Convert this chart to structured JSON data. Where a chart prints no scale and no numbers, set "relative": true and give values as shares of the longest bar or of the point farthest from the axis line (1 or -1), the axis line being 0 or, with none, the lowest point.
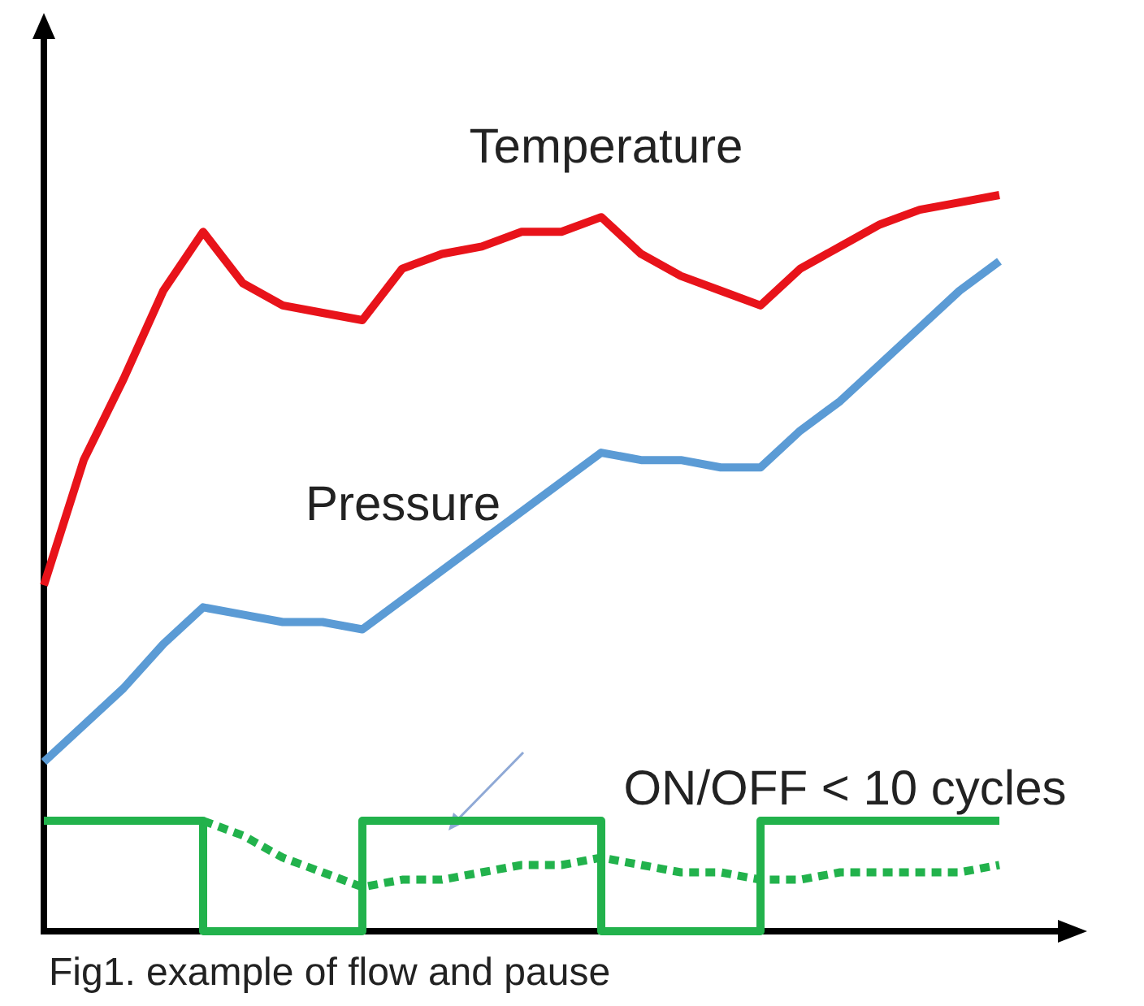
{
  "chart_data": {
    "type": "line",
    "relative": true,
    "marker": "none",
    "categories": [
      null,
      null,
      null,
      null,
      null,
      null,
      null,
      null,
      null,
      null,
      null,
      null,
      null,
      null,
      null,
      null,
      null,
      null,
      null,
      null,
      null,
      null,
      null,
      null,
      null
    ],
    "series": [
      {
        "name": "Temperature",
        "color": "#e8131a",
        "values": [
          0.47,
          0.64,
          0.75,
          0.87,
          0.95,
          0.88,
          0.85,
          0.84,
          0.83,
          0.9,
          0.92,
          0.93,
          0.95,
          0.95,
          0.97,
          0.92,
          0.89,
          0.87,
          0.85,
          0.9,
          0.93,
          0.96,
          0.98,
          0.99,
          1
        ]
      },
      {
        "name": "Pressure",
        "color": "#5b9bd5",
        "values": [
          0.23,
          0.28,
          0.33,
          0.39,
          0.44,
          0.43,
          0.42,
          0.42,
          0.41,
          0.45,
          0.49,
          0.53,
          0.57,
          0.61,
          0.65,
          0.64,
          0.64,
          0.63,
          0.63,
          0.68,
          0.72,
          0.77,
          0.82,
          0.87,
          0.91
        ]
      },
      {
        "type": "step",
        "color": "#22b24c",
        "values": [
          0.15,
          0.15,
          0.15,
          0.15,
          0,
          0,
          0,
          0,
          0.15,
          0.15,
          0.15,
          0.15,
          0.15,
          0.15,
          0,
          0,
          0,
          0,
          0.15,
          0.15,
          0.15,
          0.15,
          0.15,
          0.15,
          0.15
        ]
      },
      {
        "color": "#22b24c",
        "line_style": "dashed",
        "values": [
          null,
          null,
          null,
          null,
          0.15,
          0.13,
          0.1,
          0.08,
          0.06,
          0.07,
          0.07,
          0.08,
          0.09,
          0.09,
          0.1,
          0.09,
          0.08,
          0.08,
          0.07,
          0.07,
          0.08,
          0.08,
          0.08,
          0.08,
          0.09
        ]
      }
    ],
    "annotations": [
      "ON/OFF < 10 cycles",
      "Fig1. example of flow and pause"
    ]
  }
}
